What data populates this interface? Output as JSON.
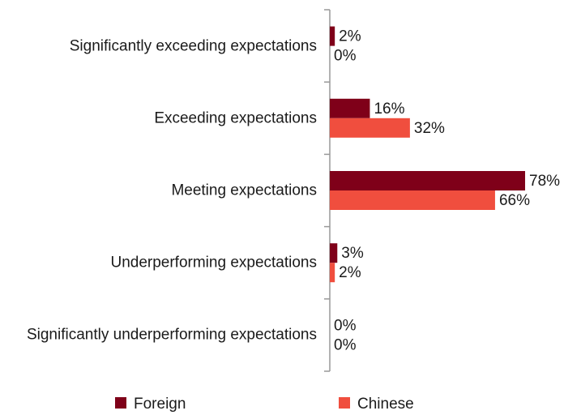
{
  "chart_data": {
    "type": "bar",
    "orientation": "horizontal",
    "categories": [
      "Significantly exceeding expectations",
      "Exceeding expectations",
      "Meeting expectations",
      "Underperforming expectations",
      "Significantly underperforming expectations"
    ],
    "series": [
      {
        "name": "Foreign",
        "color": "#7f0019",
        "values": [
          2,
          16,
          78,
          3,
          0
        ],
        "value_labels": [
          "2%",
          "16%",
          "78%",
          "3%",
          "0%"
        ]
      },
      {
        "name": "Chinese",
        "color": "#f04e3e",
        "values": [
          0,
          32,
          66,
          2,
          0
        ],
        "value_labels": [
          "0%",
          "32%",
          "66%",
          "2%",
          "0%"
        ]
      }
    ],
    "legend": "bottom"
  }
}
